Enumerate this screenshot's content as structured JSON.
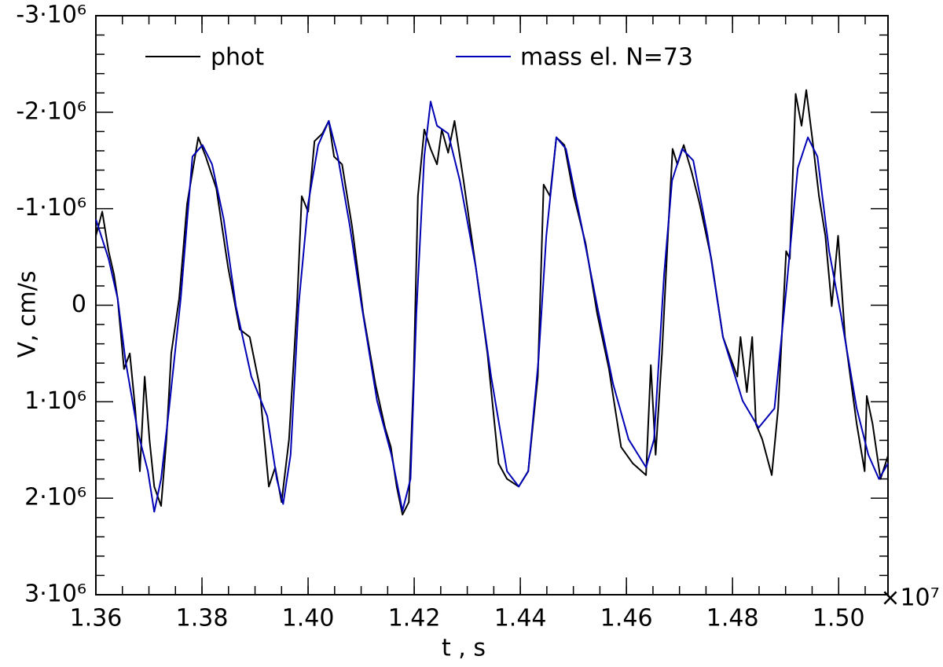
{
  "chart_data": {
    "type": "line",
    "xlabel": "t , s",
    "ylabel": "V, cm/s",
    "xmultiplier": "×10⁷",
    "xlim": [
      1.36,
      1.5093
    ],
    "ylim": [
      -3000000,
      3000000
    ],
    "y_inverted": true,
    "xticks": [
      1.36,
      1.38,
      {
        "value": 1.4,
        "label": "1.40"
      },
      1.42,
      1.44,
      1.46,
      1.48,
      {
        "value": 1.5,
        "label": "1.50"
      }
    ],
    "yticks": [
      {
        "value": -3000000,
        "label": "-3·10⁶"
      },
      {
        "value": -2000000,
        "label": "-2·10⁶"
      },
      {
        "value": -1000000,
        "label": "-1·10⁶"
      },
      0,
      {
        "value": 1000000,
        "label": "1·10⁶"
      },
      {
        "value": 2000000,
        "label": "2·10⁶"
      },
      {
        "value": 3000000,
        "label": "3·10⁶"
      }
    ],
    "series": [
      {
        "name": "phot",
        "color": "#000000",
        "x": [
          1.36,
          1.3612,
          1.3624,
          1.3634,
          1.3641,
          1.3653,
          1.3664,
          1.3674,
          1.3683,
          1.3692,
          1.3701,
          1.371,
          1.3723,
          1.3733,
          1.3742,
          1.3757,
          1.3772,
          1.3793,
          1.3807,
          1.3827,
          1.3849,
          1.3871,
          1.389,
          1.3908,
          1.3926,
          1.3938,
          1.395,
          1.3964,
          1.3979,
          1.3988,
          1.4,
          1.4012,
          1.4027,
          1.4039,
          1.4049,
          1.4064,
          1.4083,
          1.4104,
          1.4127,
          1.4145,
          1.4156,
          1.4167,
          1.4178,
          1.419,
          1.4199,
          1.4207,
          1.4219,
          1.4231,
          1.4243,
          1.4252,
          1.4264,
          1.4276,
          1.4293,
          1.4316,
          1.4338,
          1.4359,
          1.4375,
          1.4397,
          1.4415,
          1.4433,
          1.4444,
          1.4456,
          1.4468,
          1.4483,
          1.4501,
          1.4523,
          1.4545,
          1.4567,
          1.459,
          1.4612,
          1.4637,
          1.4646,
          1.4655,
          1.4667,
          1.4679,
          1.4687,
          1.4696,
          1.4708,
          1.4723,
          1.4738,
          1.476,
          1.4782,
          1.4809,
          1.4815,
          1.4827,
          1.4837,
          1.4844,
          1.4856,
          1.4874,
          1.4886,
          1.4901,
          1.4908,
          1.4919,
          1.493,
          1.4939,
          1.4951,
          1.4963,
          1.4975,
          1.4987,
          1.4999,
          1.5012,
          1.5034,
          1.5049,
          1.5053,
          1.5064,
          1.5079,
          1.5093
        ],
        "values": [
          -720000,
          -970000,
          -560000,
          -320000,
          -70000,
          660000,
          500000,
          1070000,
          1720000,
          740000,
          1390000,
          1880000,
          2080000,
          1390000,
          500000,
          -70000,
          -1050000,
          -1740000,
          -1540000,
          -1210000,
          -400000,
          250000,
          330000,
          820000,
          1880000,
          1680000,
          2040000,
          1390000,
          10000,
          -1130000,
          -970000,
          -1700000,
          -1780000,
          -1910000,
          -1540000,
          -1460000,
          -810000,
          90000,
          820000,
          1270000,
          1470000,
          1880000,
          2170000,
          2040000,
          740000,
          -1130000,
          -1820000,
          -1620000,
          -1460000,
          -1820000,
          -1580000,
          -1910000,
          -1290000,
          -400000,
          500000,
          1640000,
          1800000,
          1880000,
          1720000,
          740000,
          -1250000,
          -1130000,
          -1740000,
          -1660000,
          -1130000,
          -640000,
          90000,
          660000,
          1470000,
          1640000,
          1760000,
          620000,
          1550000,
          500000,
          -810000,
          -1620000,
          -1460000,
          -1660000,
          -1380000,
          -1050000,
          -480000,
          330000,
          740000,
          330000,
          900000,
          330000,
          1230000,
          1390000,
          1760000,
          1070000,
          -560000,
          -480000,
          -2190000,
          -1860000,
          -2230000,
          -1700000,
          -1130000,
          -720000,
          10000,
          -720000,
          330000,
          1230000,
          1720000,
          940000,
          1230000,
          1800000,
          1560000
        ]
      },
      {
        "name": "mass el. N=73",
        "color": "#0000b4",
        "x": [
          1.36,
          1.3624,
          1.3641,
          1.3656,
          1.3679,
          1.3698,
          1.371,
          1.3723,
          1.3738,
          1.376,
          1.3782,
          1.3801,
          1.3819,
          1.3841,
          1.3864,
          1.3893,
          1.3923,
          1.3941,
          1.3953,
          1.3967,
          1.3982,
          1.4,
          1.4019,
          1.4039,
          1.4056,
          1.4079,
          1.4101,
          1.413,
          1.4157,
          1.4178,
          1.4193,
          1.4204,
          1.4219,
          1.4231,
          1.4243,
          1.4264,
          1.4286,
          1.4316,
          1.4345,
          1.4375,
          1.4397,
          1.4415,
          1.4434,
          1.4449,
          1.4468,
          1.4486,
          1.4516,
          1.4545,
          1.4575,
          1.4604,
          1.4637,
          1.4652,
          1.4671,
          1.4686,
          1.4705,
          1.4726,
          1.4753,
          1.4782,
          1.4819,
          1.4849,
          1.4879,
          1.4901,
          1.4923,
          1.4942,
          1.496,
          1.4982,
          1.5004,
          1.5034,
          1.5056,
          1.5076,
          1.5093
        ],
        "values": [
          -890000,
          -480000,
          -70000,
          580000,
          1310000,
          1720000,
          2140000,
          1800000,
          1070000,
          -70000,
          -1540000,
          -1660000,
          -1460000,
          -890000,
          10000,
          740000,
          1150000,
          1800000,
          2060000,
          1550000,
          10000,
          -1050000,
          -1660000,
          -1910000,
          -1540000,
          -810000,
          10000,
          990000,
          1550000,
          2130000,
          1800000,
          90000,
          -1540000,
          -2110000,
          -1860000,
          -1780000,
          -1290000,
          -400000,
          740000,
          1720000,
          1880000,
          1720000,
          580000,
          -720000,
          -1740000,
          -1620000,
          -810000,
          10000,
          820000,
          1390000,
          1680000,
          1390000,
          -320000,
          -1290000,
          -1620000,
          -1500000,
          -720000,
          330000,
          990000,
          1270000,
          1070000,
          -150000,
          -1420000,
          -1740000,
          -1540000,
          -560000,
          90000,
          1070000,
          1550000,
          1800000,
          1640000
        ]
      }
    ]
  }
}
